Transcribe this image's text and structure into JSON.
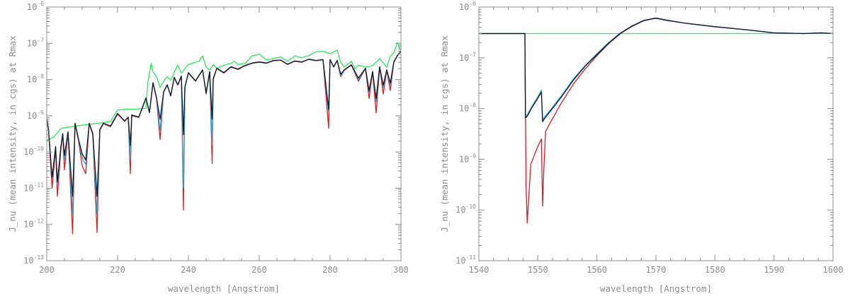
{
  "chart_data": [
    {
      "type": "line",
      "xlabel": "wavelength [Angstrom]",
      "ylabel": "J_nu (mean intensity, in cgs) at Rmax",
      "xlim": [
        200,
        300
      ],
      "ylim_log10": [
        -13,
        -6
      ],
      "yscale": "log",
      "x_ticks": [
        200,
        220,
        240,
        260,
        280,
        300
      ],
      "y_ticks_exp": [
        -13,
        -12,
        -11,
        -10,
        -9,
        -8,
        -7,
        -6
      ],
      "series": [
        {
          "color": "#2aea56",
          "x": [
            200,
            202,
            204,
            206,
            208,
            210,
            212,
            214,
            216,
            218,
            220,
            222,
            224,
            226,
            227.5,
            228,
            228.5,
            229.5,
            230,
            231,
            232,
            233,
            234,
            235,
            236,
            237,
            238,
            239,
            240,
            242,
            243,
            244,
            245,
            246,
            247,
            248,
            250,
            252,
            253,
            254,
            256,
            258,
            260,
            262,
            264,
            266,
            268,
            270,
            272,
            274,
            276,
            278,
            280,
            282,
            283,
            284,
            286,
            287,
            288,
            290,
            292,
            294,
            296,
            297,
            298,
            299,
            300
          ],
          "y": [
            2.1e-10,
            2.6e-10,
            4.5e-10,
            4.8e-10,
            5.2e-10,
            5.5e-10,
            5.8e-10,
            6.1e-10,
            6.5e-10,
            7e-10,
            1.45e-09,
            1.5e-09,
            1.52e-09,
            1.55e-09,
            1.6e-09,
            1.6e-09,
            8e-09,
            2.8e-08,
            1.6e-08,
            1.2e-08,
            6e-09,
            9e-09,
            1.2e-08,
            9.5e-09,
            1.6e-08,
            2.5e-08,
            1.5e-08,
            2e-08,
            2.6e-08,
            3e-08,
            3.2e-08,
            4.5e-08,
            2.2e-08,
            1.8e-08,
            2.6e-08,
            2e-08,
            2.5e-08,
            2.8e-08,
            3.2e-08,
            2.6e-08,
            2.8e-08,
            4.5e-08,
            5e-08,
            3.5e-08,
            3.8e-08,
            4.2e-08,
            3.2e-08,
            4.5e-08,
            4e-08,
            4.6e-08,
            5.8e-08,
            6e-08,
            5.2e-08,
            6.5e-08,
            3e-08,
            2.2e-08,
            3.2e-08,
            2e-08,
            2.5e-08,
            2.2e-08,
            2.4e-08,
            3.8e-08,
            2.2e-08,
            4.4e-08,
            5.5e-08,
            1.05e-07,
            6e-08
          ]
        },
        {
          "color": "#d81e1e",
          "x": [
            200,
            200.5,
            201.5,
            202.5,
            203,
            204,
            204.5,
            205,
            206,
            207.3,
            208,
            209,
            210,
            211,
            212,
            213,
            214.2,
            215,
            216,
            218,
            220,
            222,
            223,
            223.6,
            224,
            226,
            228,
            229,
            230,
            231,
            232,
            233,
            234,
            235,
            236,
            237,
            238,
            238.6,
            239,
            240,
            242,
            244,
            245,
            246,
            246.7,
            247,
            248,
            250,
            252,
            254,
            256,
            258,
            260,
            262,
            264,
            266,
            268,
            270,
            272,
            274,
            276,
            278,
            279.6,
            280,
            281,
            282,
            283,
            284,
            286,
            288,
            290,
            291,
            292,
            293,
            294,
            295,
            296,
            297,
            298,
            299,
            300
          ],
          "y": [
            8.5e-10,
            4e-10,
            1e-11,
            1.2e-10,
            6e-12,
            1.2e-10,
            3e-10,
            3.2e-11,
            3.4e-10,
            5.5e-13,
            6e-10,
            2e-10,
            4.2e-11,
            2.5e-11,
            6e-10,
            3e-10,
            6e-13,
            4e-10,
            6e-10,
            5e-10,
            1.1e-09,
            7e-10,
            9e-10,
            2.5e-11,
            1e-09,
            9e-10,
            3e-09,
            1.2e-09,
            8e-09,
            3e-09,
            2.2e-10,
            4.5e-09,
            7e-09,
            3.5e-09,
            1.1e-08,
            7e-09,
            1.2e-08,
            2.5e-12,
            6e-09,
            1.5e-08,
            9e-09,
            1.8e-08,
            4e-09,
            1.6e-08,
            4.8e-11,
            1e-08,
            2e-08,
            1.5e-08,
            2.2e-08,
            1.9e-08,
            2.4e-08,
            2.8e-08,
            3e-08,
            2.8e-08,
            3.3e-08,
            3.4e-08,
            2.6e-08,
            3.2e-08,
            3e-08,
            3.6e-08,
            3.3e-08,
            3.5e-08,
            4.5e-10,
            3.5e-08,
            2.2e-08,
            3.3e-08,
            1.2e-08,
            1.8e-08,
            2.5e-08,
            9e-09,
            2e-08,
            3e-09,
            1.6e-08,
            1.2e-09,
            2.2e-08,
            4e-09,
            1.8e-08,
            5e-09,
            3e-08,
            4.5e-08,
            6e-08
          ]
        },
        {
          "color": "#27a9e1",
          "x": [
            200,
            200.5,
            201.5,
            202.5,
            203,
            204,
            204.5,
            205,
            206,
            207.3,
            208,
            209,
            210,
            211,
            212,
            213,
            214.2,
            215,
            216,
            218,
            220,
            222,
            223,
            223.6,
            224,
            226,
            228,
            229,
            230,
            231,
            232,
            233,
            234,
            235,
            236,
            237,
            238,
            238.6,
            239,
            240,
            242,
            244,
            245,
            246,
            246.7,
            247,
            248,
            250,
            252,
            254,
            256,
            258,
            260,
            262,
            264,
            266,
            268,
            270,
            272,
            274,
            276,
            278,
            279.6,
            280,
            281,
            282,
            283,
            284,
            286,
            288,
            290,
            291,
            292,
            293,
            294,
            295,
            296,
            297,
            298,
            299,
            300
          ],
          "y": [
            8.5e-10,
            4.2e-10,
            1.8e-11,
            1.4e-10,
            1.2e-11,
            1.4e-10,
            3.2e-10,
            6e-11,
            3.6e-10,
            2e-12,
            6.2e-10,
            2.2e-10,
            7e-11,
            4.5e-11,
            6.2e-10,
            3.2e-10,
            2e-12,
            4.2e-10,
            6.2e-10,
            5.2e-10,
            1.15e-09,
            7.2e-10,
            9.2e-10,
            6e-11,
            1.05e-09,
            9.2e-10,
            3.1e-09,
            1.25e-09,
            8.2e-09,
            3.1e-09,
            4e-10,
            4.6e-09,
            7.2e-09,
            3.6e-09,
            1.15e-08,
            7.2e-09,
            1.25e-08,
            1e-11,
            6.2e-09,
            1.55e-08,
            9.2e-09,
            1.85e-08,
            4.2e-09,
            1.65e-08,
            1.5e-10,
            1.05e-08,
            2.05e-08,
            1.55e-08,
            2.25e-08,
            1.95e-08,
            2.45e-08,
            2.85e-08,
            3.05e-08,
            2.85e-08,
            3.35e-08,
            3.45e-08,
            2.65e-08,
            3.25e-08,
            3.05e-08,
            3.65e-08,
            3.35e-08,
            3.55e-08,
            1.2e-09,
            3.55e-08,
            2.25e-08,
            3.35e-08,
            1.3e-08,
            1.85e-08,
            2.55e-08,
            1e-08,
            2.05e-08,
            4.5e-09,
            1.65e-08,
            2.5e-09,
            2.25e-08,
            6e-09,
            1.85e-08,
            7e-09,
            3.1e-08,
            4.6e-08,
            6.1e-08
          ]
        },
        {
          "color": "#101828",
          "x": [
            200,
            200.5,
            201.5,
            202.5,
            203,
            204,
            204.5,
            205,
            206,
            207.3,
            208,
            209,
            210,
            211,
            212,
            213,
            214.2,
            215,
            216,
            218,
            220,
            222,
            223,
            223.6,
            224,
            226,
            228,
            229,
            230,
            231,
            232,
            233,
            234,
            235,
            236,
            237,
            238,
            238.6,
            239,
            240,
            242,
            244,
            245,
            246,
            246.7,
            247,
            248,
            250,
            252,
            254,
            256,
            258,
            260,
            262,
            264,
            266,
            268,
            270,
            272,
            274,
            276,
            278,
            279.6,
            280,
            281,
            282,
            283,
            284,
            286,
            288,
            290,
            291,
            292,
            293,
            294,
            295,
            296,
            297,
            298,
            299,
            300
          ],
          "y": [
            8.5e-10,
            4.2e-10,
            2e-11,
            1.4e-10,
            1.5e-11,
            1.4e-10,
            3.2e-10,
            8e-11,
            3.6e-10,
            6e-12,
            6.2e-10,
            2.2e-10,
            9e-11,
            6e-11,
            6.2e-10,
            3.2e-10,
            6e-12,
            4.2e-10,
            6.2e-10,
            5.2e-10,
            1.15e-09,
            7.2e-10,
            9.2e-10,
            1.5e-10,
            1.05e-09,
            9.2e-10,
            3.1e-09,
            1.25e-09,
            8.2e-09,
            3.1e-09,
            8e-10,
            4.6e-09,
            7.2e-09,
            3.6e-09,
            1.15e-08,
            7.2e-09,
            1.25e-08,
            3e-10,
            6.2e-09,
            1.55e-08,
            9.2e-09,
            1.85e-08,
            4.2e-09,
            1.65e-08,
            8e-10,
            1.05e-08,
            2.05e-08,
            1.55e-08,
            2.25e-08,
            1.95e-08,
            2.45e-08,
            2.85e-08,
            3.05e-08,
            2.85e-08,
            3.35e-08,
            3.45e-08,
            2.65e-08,
            3.25e-08,
            3.05e-08,
            3.65e-08,
            3.35e-08,
            3.55e-08,
            1.5e-09,
            3.55e-08,
            2.25e-08,
            3.35e-08,
            1.4e-08,
            1.85e-08,
            2.55e-08,
            1.1e-08,
            2.05e-08,
            5e-09,
            1.65e-08,
            3e-09,
            2.25e-08,
            7e-09,
            1.85e-08,
            8e-09,
            3.1e-08,
            4.6e-08,
            6.1e-08
          ]
        }
      ]
    },
    {
      "type": "line",
      "xlabel": "wavelength [Angstrom]",
      "ylabel": "J_nu (mean intensity, in cgs) at Rmax",
      "xlim": [
        1540,
        1600
      ],
      "ylim_log10": [
        -11,
        -6
      ],
      "yscale": "log",
      "x_ticks": [
        1540,
        1550,
        1560,
        1570,
        1580,
        1590,
        1600
      ],
      "y_ticks_exp": [
        -11,
        -10,
        -9,
        -8,
        -7,
        -6
      ],
      "series": [
        {
          "color": "#2aea56",
          "x": [
            1540,
            1600
          ],
          "y": [
            3e-07,
            3e-07
          ]
        },
        {
          "color": "#d81e1e",
          "x": [
            1540,
            1547.8,
            1547.9,
            1548.0,
            1548.2,
            1548.8,
            1550,
            1550.6,
            1550.8,
            1551.0,
            1551.3,
            1552,
            1554,
            1556,
            1558,
            1560,
            1562,
            1564,
            1566,
            1568,
            1570,
            1572,
            1575,
            1580,
            1585,
            1590,
            1595,
            1598,
            1600
          ],
          "y": [
            3e-07,
            3e-07,
            1e-08,
            3e-10,
            5.5e-11,
            8e-10,
            1.8e-09,
            2.5e-09,
            1.2e-10,
            6e-10,
            3.5e-09,
            5e-09,
            1.3e-08,
            3e-08,
            6e-08,
            1.1e-07,
            1.9e-07,
            3e-07,
            4.2e-07,
            5.4e-07,
            6e-07,
            5.4e-07,
            4.8e-07,
            4.1e-07,
            3.6e-07,
            3.1e-07,
            3e-07,
            3.1e-07,
            3e-07
          ]
        },
        {
          "color": "#27a9e1",
          "x": [
            1540,
            1547.8,
            1547.9,
            1548.2,
            1549,
            1550,
            1550.6,
            1550.8,
            1551.2,
            1552,
            1554,
            1556,
            1558,
            1560,
            1562,
            1564,
            1566,
            1568,
            1570,
            1572,
            1575,
            1580,
            1585,
            1590,
            1595,
            1598,
            1600
          ],
          "y": [
            3e-07,
            3e-07,
            7e-09,
            7.5e-09,
            1.1e-08,
            1.7e-08,
            2.3e-08,
            6e-09,
            7e-09,
            9e-09,
            1.8e-08,
            3.8e-08,
            7e-08,
            1.2e-07,
            2e-07,
            3.1e-07,
            4.3e-07,
            5.5e-07,
            6.1e-07,
            5.5e-07,
            4.8e-07,
            4.1e-07,
            3.6e-07,
            3.1e-07,
            3e-07,
            3.1e-07,
            3e-07
          ]
        },
        {
          "color": "#101828",
          "x": [
            1540,
            1547.8,
            1547.9,
            1548.2,
            1549,
            1550,
            1550.6,
            1550.8,
            1551.2,
            1552,
            1554,
            1556,
            1558,
            1560,
            1562,
            1564,
            1566,
            1568,
            1570,
            1572,
            1575,
            1580,
            1585,
            1590,
            1595,
            1598,
            1600
          ],
          "y": [
            3e-07,
            3e-07,
            6.5e-09,
            7e-09,
            1.05e-08,
            1.6e-08,
            2.1e-08,
            5.5e-09,
            6.5e-09,
            8.5e-09,
            1.7e-08,
            3.6e-08,
            6.8e-08,
            1.15e-07,
            1.95e-07,
            3.05e-07,
            4.25e-07,
            5.45e-07,
            6.05e-07,
            5.45e-07,
            4.8e-07,
            4.1e-07,
            3.6e-07,
            3.1e-07,
            3e-07,
            3.1e-07,
            3e-07
          ]
        }
      ]
    }
  ]
}
